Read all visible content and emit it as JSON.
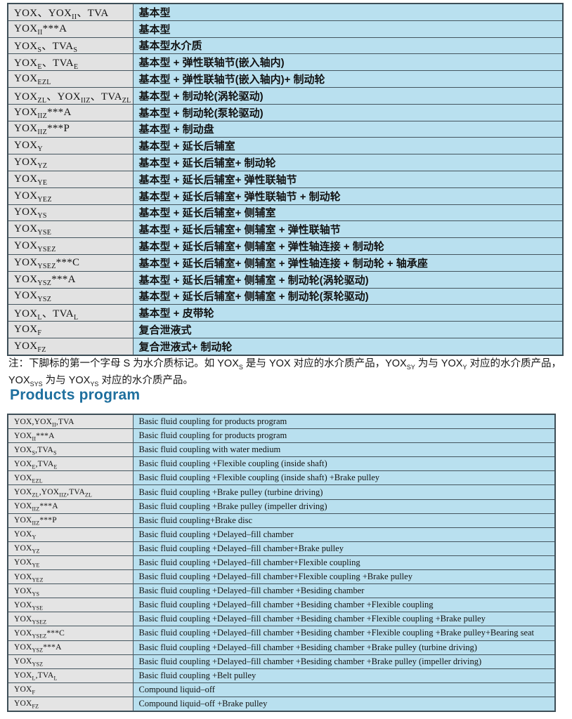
{
  "heading": "Products program",
  "colors": {
    "heading_blue": "#1e6f9e",
    "cell_gray": "#e2e2e2",
    "cell_blue": "#b9e0ef",
    "border": "#44555e"
  },
  "top_table": {
    "rows": [
      {
        "model": [
          {
            "text": "YOX、YOX"
          },
          {
            "text": "II",
            "sub": true
          },
          {
            "text": "、TVA"
          }
        ],
        "desc": "基本型"
      },
      {
        "model": [
          {
            "text": "YOX"
          },
          {
            "text": "II",
            "sub": true
          },
          {
            "text": "***A"
          }
        ],
        "desc": "基本型"
      },
      {
        "model": [
          {
            "text": "YOX"
          },
          {
            "text": "S",
            "sub": true
          },
          {
            "text": "、TVA"
          },
          {
            "text": "S",
            "sub": true
          }
        ],
        "desc": "基本型水介质"
      },
      {
        "model": [
          {
            "text": "YOX"
          },
          {
            "text": "E",
            "sub": true
          },
          {
            "text": "、TVA"
          },
          {
            "text": "E",
            "sub": true
          }
        ],
        "desc": "基本型 + 弹性联轴节(嵌入轴内)"
      },
      {
        "model": [
          {
            "text": "YOX"
          },
          {
            "text": "EZL",
            "sub": true
          }
        ],
        "desc": "基本型 + 弹性联轴节(嵌入轴内)+ 制动轮"
      },
      {
        "model": [
          {
            "text": "YOX"
          },
          {
            "text": "ZL",
            "sub": true
          },
          {
            "text": "、YOX"
          },
          {
            "text": "IIZ",
            "sub": true
          },
          {
            "text": "、TVA"
          },
          {
            "text": "ZL",
            "sub": true
          }
        ],
        "desc": "基本型 + 制动轮(涡轮驱动)"
      },
      {
        "model": [
          {
            "text": "YOX"
          },
          {
            "text": "IIZ",
            "sub": true
          },
          {
            "text": "***A"
          }
        ],
        "desc": "基本型 + 制动轮(泵轮驱动)"
      },
      {
        "model": [
          {
            "text": "YOX"
          },
          {
            "text": "IIZ",
            "sub": true
          },
          {
            "text": "***P"
          }
        ],
        "desc": "基本型 + 制动盘"
      },
      {
        "model": [
          {
            "text": "YOX"
          },
          {
            "text": "Y",
            "sub": true
          }
        ],
        "desc": "基本型 + 延长后辅室"
      },
      {
        "model": [
          {
            "text": "YOX"
          },
          {
            "text": "YZ",
            "sub": true
          }
        ],
        "desc": "基本型 + 延长后辅室+ 制动轮"
      },
      {
        "model": [
          {
            "text": "YOX"
          },
          {
            "text": "YE",
            "sub": true
          }
        ],
        "desc": "基本型 + 延长后辅室+ 弹性联轴节"
      },
      {
        "model": [
          {
            "text": "YOX"
          },
          {
            "text": "YEZ",
            "sub": true
          }
        ],
        "desc": "基本型 + 延长后辅室+ 弹性联轴节 + 制动轮"
      },
      {
        "model": [
          {
            "text": "YOX"
          },
          {
            "text": "YS",
            "sub": true
          }
        ],
        "desc": "基本型 + 延长后辅室+ 侧辅室"
      },
      {
        "model": [
          {
            "text": "YOX"
          },
          {
            "text": "YSE",
            "sub": true
          }
        ],
        "desc": "基本型 + 延长后辅室+ 侧辅室 + 弹性联轴节"
      },
      {
        "model": [
          {
            "text": "YOX"
          },
          {
            "text": "YSEZ",
            "sub": true
          }
        ],
        "desc": "基本型 + 延长后辅室+ 侧辅室 + 弹性轴连接 + 制动轮"
      },
      {
        "model": [
          {
            "text": "YOX"
          },
          {
            "text": "YSEZ",
            "sub": true
          },
          {
            "text": "***C"
          }
        ],
        "desc": "基本型 + 延长后辅室+ 侧辅室 + 弹性轴连接 + 制动轮 + 轴承座"
      },
      {
        "model": [
          {
            "text": "YOX"
          },
          {
            "text": "YSZ",
            "sub": true
          },
          {
            "text": "***A"
          }
        ],
        "desc": "基本型 + 延长后辅室+ 侧辅室 + 制动轮(涡轮驱动)"
      },
      {
        "model": [
          {
            "text": "YOX"
          },
          {
            "text": "YSZ",
            "sub": true
          }
        ],
        "desc": "基本型 + 延长后辅室+ 侧辅室 + 制动轮(泵轮驱动)"
      },
      {
        "model": [
          {
            "text": "YOX"
          },
          {
            "text": "L",
            "sub": true
          },
          {
            "text": "、TVA"
          },
          {
            "text": "L",
            "sub": true
          }
        ],
        "desc": "基本型 + 皮带轮"
      },
      {
        "model": [
          {
            "text": "YOX"
          },
          {
            "text": "F",
            "sub": true
          }
        ],
        "desc": "复合泄液式"
      },
      {
        "model": [
          {
            "text": "YOX"
          },
          {
            "text": "FZ",
            "sub": true
          }
        ],
        "desc": "复合泄液式+ 制动轮"
      }
    ]
  },
  "note": {
    "segments": [
      {
        "text": "注：下脚标的第一个字母 S 为水介质标记。如 YOX"
      },
      {
        "text": "S",
        "sub": true
      },
      {
        "text": " 是与 YOX 对应的水介质产品，YOX"
      },
      {
        "text": "SY",
        "sub": true
      },
      {
        "text": " 为与 YOX"
      },
      {
        "text": "Y",
        "sub": true
      },
      {
        "text": " 对应的水介质产品，YOX"
      },
      {
        "text": "SYS",
        "sub": true
      },
      {
        "text": " 为与 YOX"
      },
      {
        "text": "YS",
        "sub": true
      },
      {
        "text": " 对应的水介质产品。"
      }
    ]
  },
  "bottom_table": {
    "rows": [
      {
        "model": [
          {
            "text": "YOX,YOX"
          },
          {
            "text": "II",
            "sub": true
          },
          {
            "text": ",TVA"
          }
        ],
        "desc": "Basic fluid coupling for products program"
      },
      {
        "model": [
          {
            "text": "YOX"
          },
          {
            "text": "II",
            "sub": true
          },
          {
            "text": "***A"
          }
        ],
        "desc": "Basic fluid coupling for products program"
      },
      {
        "model": [
          {
            "text": "YOX"
          },
          {
            "text": "S",
            "sub": true
          },
          {
            "text": ",TVA"
          },
          {
            "text": "S",
            "sub": true
          }
        ],
        "desc": "Basic fluid coupling with water medium"
      },
      {
        "model": [
          {
            "text": "YOX"
          },
          {
            "text": "E",
            "sub": true
          },
          {
            "text": ",TVA"
          },
          {
            "text": "E",
            "sub": true
          }
        ],
        "desc": "Basic fluid coupling +Flexible coupling (inside shaft)"
      },
      {
        "model": [
          {
            "text": "YOX"
          },
          {
            "text": "EZL",
            "sub": true
          }
        ],
        "desc": "Basic fluid coupling +Flexible coupling (inside shaft) +Brake pulley"
      },
      {
        "model": [
          {
            "text": "YOX"
          },
          {
            "text": "ZL",
            "sub": true
          },
          {
            "text": ",YOX"
          },
          {
            "text": "IIZ",
            "sub": true
          },
          {
            "text": ",TVA"
          },
          {
            "text": "ZL",
            "sub": true
          }
        ],
        "desc": "Basic fluid coupling +Brake pulley (turbine driving)"
      },
      {
        "model": [
          {
            "text": "YOX"
          },
          {
            "text": "IIZ",
            "sub": true
          },
          {
            "text": "***A"
          }
        ],
        "desc": "Basic fluid coupling +Brake pulley (impeller driving)"
      },
      {
        "model": [
          {
            "text": "YOX"
          },
          {
            "text": "IIZ",
            "sub": true
          },
          {
            "text": "***P"
          }
        ],
        "desc": "Basic fluid coupling+Brake disc"
      },
      {
        "model": [
          {
            "text": "YOX"
          },
          {
            "text": "Y",
            "sub": true
          }
        ],
        "desc": "Basic fluid coupling +Delayed–fill chamber"
      },
      {
        "model": [
          {
            "text": "YOX"
          },
          {
            "text": "YZ",
            "sub": true
          }
        ],
        "desc": "Basic fluid coupling +Delayed–fill chamber+Brake pulley"
      },
      {
        "model": [
          {
            "text": "YOX"
          },
          {
            "text": "YE",
            "sub": true
          }
        ],
        "desc": "Basic fluid coupling +Delayed–fill chamber+Flexible coupling"
      },
      {
        "model": [
          {
            "text": "YOX"
          },
          {
            "text": "YEZ",
            "sub": true
          }
        ],
        "desc": "Basic fluid coupling +Delayed–fill chamber+Flexible coupling +Brake pulley"
      },
      {
        "model": [
          {
            "text": "YOX"
          },
          {
            "text": "YS",
            "sub": true
          }
        ],
        "desc": "Basic fluid coupling +Delayed–fill chamber +Besiding chamber"
      },
      {
        "model": [
          {
            "text": "YOX"
          },
          {
            "text": "YSE",
            "sub": true
          }
        ],
        "desc": "Basic fluid coupling +Delayed–fill chamber +Besiding chamber +Flexible coupling"
      },
      {
        "model": [
          {
            "text": "YOX"
          },
          {
            "text": "YSEZ",
            "sub": true
          }
        ],
        "desc": "Basic fluid coupling +Delayed–fill chamber +Besiding chamber +Flexible coupling +Brake pulley"
      },
      {
        "model": [
          {
            "text": "YOX"
          },
          {
            "text": "YSEZ",
            "sub": true
          },
          {
            "text": "***C"
          }
        ],
        "desc": "Basic fluid coupling +Delayed–fill chamber +Besiding chamber +Flexible coupling +Brake pulley+Bearing seat"
      },
      {
        "model": [
          {
            "text": "YOX"
          },
          {
            "text": "YSZ",
            "sub": true
          },
          {
            "text": "***A"
          }
        ],
        "desc": "Basic fluid coupling +Delayed–fill chamber +Besiding chamber +Brake pulley (turbine driving)"
      },
      {
        "model": [
          {
            "text": "YOX"
          },
          {
            "text": "YSZ",
            "sub": true
          }
        ],
        "desc": "Basic fluid coupling +Delayed–fill chamber +Besiding chamber +Brake pulley (impeller driving)"
      },
      {
        "model": [
          {
            "text": "YOX"
          },
          {
            "text": "L",
            "sub": true
          },
          {
            "text": ",TVA"
          },
          {
            "text": "L",
            "sub": true
          }
        ],
        "desc": "Basic fluid coupling +Belt pulley"
      },
      {
        "model": [
          {
            "text": "YOX"
          },
          {
            "text": "F",
            "sub": true
          }
        ],
        "desc": "Compound liquid–off"
      },
      {
        "model": [
          {
            "text": "YOX"
          },
          {
            "text": "FZ",
            "sub": true
          }
        ],
        "desc": "Compound liquid–off +Brake pulley"
      }
    ]
  }
}
